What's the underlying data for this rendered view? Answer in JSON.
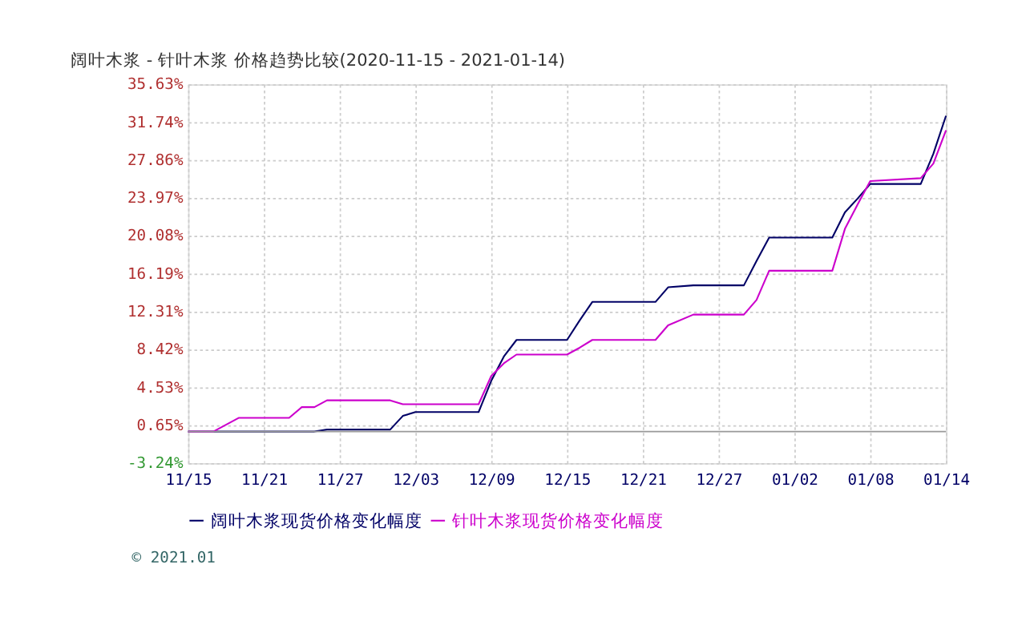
{
  "chart_data": {
    "type": "line",
    "title": "阔叶木浆 - 针叶木浆 价格趋势比较(2020-11-15 - 2021-01-14)",
    "xlim": [
      "2020-11-15",
      "2021-01-14"
    ],
    "xticks": [
      {
        "value": "2020-11-15",
        "label": "11/15"
      },
      {
        "value": "2020-11-21",
        "label": "11/21"
      },
      {
        "value": "2020-11-27",
        "label": "11/27"
      },
      {
        "value": "2020-12-03",
        "label": "12/03"
      },
      {
        "value": "2020-12-09",
        "label": "12/09"
      },
      {
        "value": "2020-12-15",
        "label": "12/15"
      },
      {
        "value": "2020-12-21",
        "label": "12/21"
      },
      {
        "value": "2020-12-27",
        "label": "12/27"
      },
      {
        "value": "2021-01-02",
        "label": "01/02"
      },
      {
        "value": "2021-01-08",
        "label": "01/08"
      },
      {
        "value": "2021-01-14",
        "label": "01/14"
      }
    ],
    "ylim": [
      -3.24,
      35.63
    ],
    "yticks": [
      {
        "value": -3.24,
        "label": "-3.24%"
      },
      {
        "value": 0.65,
        "label": "0.65%"
      },
      {
        "value": 4.53,
        "label": "4.53%"
      },
      {
        "value": 8.42,
        "label": "8.42%"
      },
      {
        "value": 12.31,
        "label": "12.31%"
      },
      {
        "value": 16.19,
        "label": "16.19%"
      },
      {
        "value": 20.08,
        "label": "20.08%"
      },
      {
        "value": 23.97,
        "label": "23.97%"
      },
      {
        "value": 27.86,
        "label": "27.86%"
      },
      {
        "value": 31.74,
        "label": "31.74%"
      },
      {
        "value": 35.63,
        "label": "35.63%"
      }
    ],
    "series": [
      {
        "name": "阔叶木浆现货价格变化幅度",
        "color": "#000066",
        "x": [
          "2020-11-15",
          "2020-11-25",
          "2020-11-26",
          "2020-12-01",
          "2020-12-02",
          "2020-12-03",
          "2020-12-08",
          "2020-12-09",
          "2020-12-10",
          "2020-12-11",
          "2020-12-15",
          "2020-12-16",
          "2020-12-17",
          "2020-12-22",
          "2020-12-23",
          "2020-12-25",
          "2020-12-29",
          "2020-12-30",
          "2020-12-31",
          "2021-01-05",
          "2021-01-06",
          "2021-01-07",
          "2021-01-08",
          "2021-01-12",
          "2021-01-13",
          "2021-01-14"
        ],
        "values": [
          0,
          0,
          0.2,
          0.2,
          1.6,
          2.0,
          2.0,
          5.2,
          7.7,
          9.4,
          9.4,
          11.4,
          13.3,
          13.3,
          14.8,
          15.0,
          15.0,
          17.5,
          19.9,
          19.9,
          22.5,
          23.9,
          25.4,
          25.4,
          28.5,
          32.4
        ]
      },
      {
        "name": "针叶木浆现货价格变化幅度",
        "color": "#cc00cc",
        "x": [
          "2020-11-15",
          "2020-11-17",
          "2020-11-19",
          "2020-11-23",
          "2020-11-24",
          "2020-11-25",
          "2020-11-26",
          "2020-12-01",
          "2020-12-02",
          "2020-12-08",
          "2020-12-09",
          "2020-12-10",
          "2020-12-11",
          "2020-12-15",
          "2020-12-16",
          "2020-12-17",
          "2020-12-22",
          "2020-12-23",
          "2020-12-25",
          "2020-12-29",
          "2020-12-30",
          "2020-12-31",
          "2021-01-05",
          "2021-01-06",
          "2021-01-07",
          "2021-01-08",
          "2021-01-12",
          "2021-01-13",
          "2021-01-14"
        ],
        "values": [
          0,
          0,
          1.4,
          1.4,
          2.5,
          2.5,
          3.2,
          3.2,
          2.8,
          2.8,
          5.7,
          7.0,
          7.9,
          7.9,
          8.6,
          9.4,
          9.4,
          10.9,
          12.0,
          12.0,
          13.5,
          16.5,
          16.5,
          20.8,
          23.3,
          25.7,
          26.0,
          27.5,
          30.9
        ]
      }
    ],
    "ref_lines": [
      {
        "axis": "y",
        "value": 0,
        "color": "#999999"
      }
    ],
    "grid": true,
    "legend": "bottom",
    "line_style": "solid",
    "marker": "none",
    "annotations": [
      "© 2021.01"
    ]
  }
}
